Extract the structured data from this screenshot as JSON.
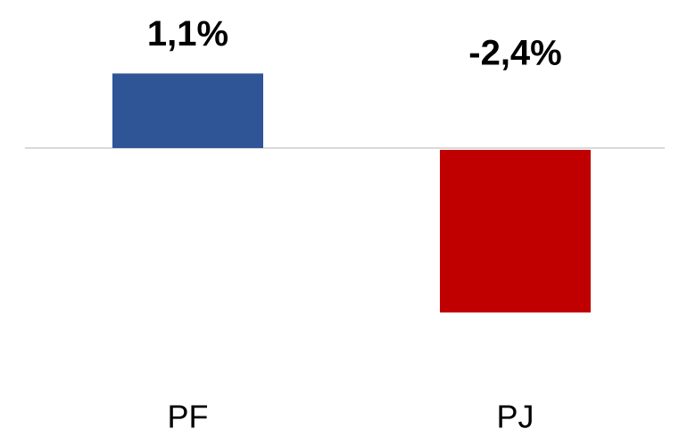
{
  "chart_data": {
    "type": "bar",
    "categories": [
      "PF",
      "PJ"
    ],
    "values": [
      1.1,
      -2.4
    ],
    "value_labels": [
      "1,1%",
      "-2,4%"
    ],
    "colors": [
      "#2f5597",
      "#c00000"
    ],
    "ylim": [
      -3,
      1.5
    ]
  }
}
